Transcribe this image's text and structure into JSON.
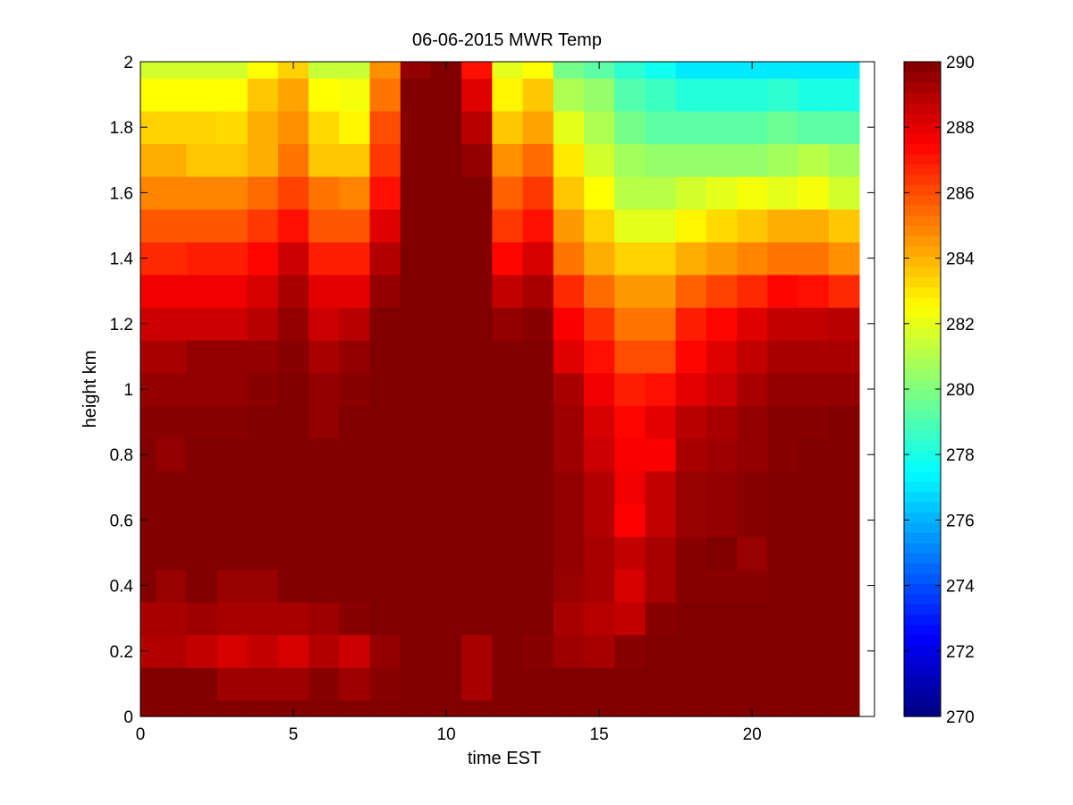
{
  "chart_data": {
    "type": "heatmap",
    "title": "06-06-2015 MWR Temp",
    "xlabel": "time EST",
    "ylabel": "height km",
    "xlim": [
      0,
      24
    ],
    "ylim": [
      0,
      2
    ],
    "x_ticks": [
      0,
      5,
      10,
      15,
      20
    ],
    "y_ticks": [
      0,
      0.2,
      0.4,
      0.6,
      0.8,
      1,
      1.2,
      1.4,
      1.6,
      1.8,
      2
    ],
    "colormap": "jet",
    "colorbar": {
      "min": 270,
      "max": 290,
      "ticks": [
        270,
        272,
        274,
        276,
        278,
        280,
        282,
        284,
        286,
        288,
        290
      ]
    },
    "x_edges": [
      0,
      0.5,
      1.5,
      2.5,
      3.5,
      4.5,
      5.5,
      6.5,
      7.5,
      8.5,
      9.5,
      10.5,
      11.5,
      12.5,
      13.5,
      14.5,
      15.5,
      16.5,
      17.5,
      18.5,
      19.5,
      20.5,
      21.5,
      22.5,
      23.5
    ],
    "y_edges": [
      0,
      0.05,
      0.15,
      0.25,
      0.35,
      0.45,
      0.55,
      0.65,
      0.75,
      0.85,
      0.95,
      1.05,
      1.15,
      1.25,
      1.35,
      1.45,
      1.55,
      1.65,
      1.75,
      1.85,
      1.95,
      2.0
    ],
    "values": [
      [
        290,
        290,
        290,
        290,
        290,
        290,
        290,
        290,
        290,
        290,
        290,
        290,
        290,
        290,
        290,
        290,
        290,
        290,
        290,
        290,
        290,
        290,
        290,
        290
      ],
      [
        290,
        290,
        290,
        289.4,
        289.4,
        289.4,
        289.8,
        289.4,
        289.8,
        290,
        290,
        289.2,
        290,
        290,
        290,
        290,
        290,
        290,
        290,
        290,
        290,
        290,
        290,
        290
      ],
      [
        289,
        289,
        288.7,
        288.3,
        288.7,
        288.3,
        289,
        288.5,
        289.6,
        290,
        290,
        289.2,
        290,
        289.8,
        289.4,
        289.2,
        289.8,
        290,
        290,
        290,
        290,
        290,
        290,
        290
      ],
      [
        289.2,
        289.2,
        289.4,
        289.2,
        289.2,
        289.2,
        289.4,
        289.8,
        290,
        290,
        290,
        290,
        290,
        290,
        289.2,
        288.9,
        288.7,
        289.8,
        290,
        290,
        290,
        290,
        290,
        290
      ],
      [
        290,
        289.5,
        290,
        289.5,
        289.5,
        290,
        290,
        290,
        290,
        290,
        290,
        290,
        290,
        290,
        289.5,
        289.2,
        288.3,
        289.2,
        289.8,
        289.8,
        289.8,
        290,
        290,
        290
      ],
      [
        290,
        290,
        290,
        290,
        290,
        290,
        290,
        290,
        290,
        290,
        290,
        290,
        290,
        290,
        289.6,
        289.2,
        288.7,
        289.2,
        289.8,
        290,
        289.5,
        290,
        290,
        290
      ],
      [
        290,
        290,
        290,
        290,
        290,
        290,
        290,
        290,
        290,
        290,
        290,
        290,
        290,
        290,
        289.6,
        289,
        287.5,
        288.7,
        289.5,
        289.6,
        289.8,
        290,
        290,
        290
      ],
      [
        290,
        290,
        290,
        290,
        290,
        290,
        290,
        290,
        290,
        290,
        290,
        290,
        290,
        290,
        289.6,
        289,
        287.8,
        288.7,
        289.5,
        289.6,
        289.8,
        290,
        290,
        290
      ],
      [
        290,
        289.6,
        290,
        290,
        290,
        290,
        290,
        290,
        290,
        290,
        290,
        290,
        290,
        290,
        289.4,
        288.5,
        287.6,
        287.6,
        289.2,
        289.4,
        289.6,
        289.8,
        290,
        290
      ],
      [
        289.8,
        289.8,
        289.8,
        289.8,
        290,
        290,
        289.6,
        290,
        290,
        290,
        290,
        290,
        290,
        290,
        289.4,
        288.3,
        287.4,
        288,
        288.9,
        289.2,
        289.6,
        289.8,
        289.8,
        290
      ],
      [
        289.6,
        289.6,
        289.6,
        289.6,
        289.8,
        290,
        289.6,
        289.8,
        290,
        290,
        290,
        290,
        290,
        290,
        289.2,
        287.8,
        286.9,
        287.2,
        288,
        288.5,
        289.2,
        289.6,
        289.6,
        289.6
      ],
      [
        289.2,
        289.2,
        289.6,
        289.6,
        289.6,
        289.8,
        289.2,
        289.6,
        290,
        290,
        290,
        290,
        290,
        290,
        288.1,
        287.2,
        286,
        286,
        287.4,
        288.1,
        288.7,
        289.2,
        289.2,
        289.2
      ],
      [
        288.5,
        288.5,
        288.5,
        288.5,
        288.9,
        289.6,
        288.5,
        288.9,
        290,
        290,
        290,
        290,
        289.6,
        289.8,
        287.6,
        286.5,
        285.2,
        285.2,
        286.9,
        287.4,
        288.1,
        288.7,
        288.7,
        288.9
      ],
      [
        287.8,
        287.8,
        287.8,
        287.8,
        288.3,
        289.2,
        288,
        288,
        289.6,
        290,
        290,
        290,
        288.7,
        289.2,
        286.7,
        285.4,
        284.5,
        284.5,
        285.6,
        286.2,
        286.7,
        287.4,
        287.2,
        286.7
      ],
      [
        286.7,
        286.7,
        286.9,
        286.9,
        287.4,
        288.5,
        286.9,
        286.9,
        289,
        290,
        290,
        290,
        287.4,
        288.3,
        285.2,
        284.1,
        283.4,
        283.4,
        284.1,
        284.5,
        284.9,
        285.2,
        285.2,
        284.7
      ],
      [
        285.8,
        285.8,
        285.8,
        285.8,
        286.4,
        287.2,
        285.8,
        285.8,
        288.1,
        290,
        290,
        290,
        286.4,
        287.2,
        284.5,
        283.4,
        282,
        282,
        282.7,
        283.2,
        283.6,
        284.1,
        284.1,
        283.6
      ],
      [
        284.9,
        284.9,
        284.9,
        284.9,
        285.4,
        286.2,
        285.2,
        284.9,
        287.2,
        290,
        290,
        290,
        285.6,
        286.4,
        283.6,
        282.5,
        281.1,
        281.1,
        281.6,
        282,
        282.3,
        282,
        282.3,
        281.6
      ],
      [
        284.1,
        284.1,
        283.6,
        283.6,
        284.1,
        285.2,
        283.6,
        283.6,
        286.4,
        290,
        290,
        289.6,
        284.7,
        285.4,
        282.9,
        281.6,
        280.7,
        280.4,
        280.4,
        280.4,
        280.4,
        280.7,
        281.1,
        280.7
      ],
      [
        283.4,
        283.4,
        283.4,
        283.2,
        284.1,
        284.7,
        283.2,
        282.7,
        286,
        290,
        290,
        288.9,
        283.6,
        284.3,
        282,
        280.9,
        279.8,
        279.3,
        279.3,
        279.3,
        279.3,
        279.6,
        279.3,
        279.3
      ],
      [
        282.5,
        282.5,
        282.5,
        282.5,
        283.6,
        284.3,
        282.5,
        282.3,
        285.2,
        290,
        290,
        288.1,
        282.7,
        283.6,
        280.9,
        280.4,
        279.1,
        278.7,
        278.2,
        278.2,
        278.2,
        278.4,
        278,
        278
      ],
      [
        281.6,
        281.6,
        281.6,
        281.6,
        282.5,
        283.4,
        281.4,
        281.4,
        284.7,
        289.6,
        290,
        287.2,
        282,
        282.5,
        279.8,
        279.3,
        278.4,
        277.8,
        277.1,
        277.1,
        277.1,
        277.1,
        277.1,
        277.1
      ]
    ]
  }
}
